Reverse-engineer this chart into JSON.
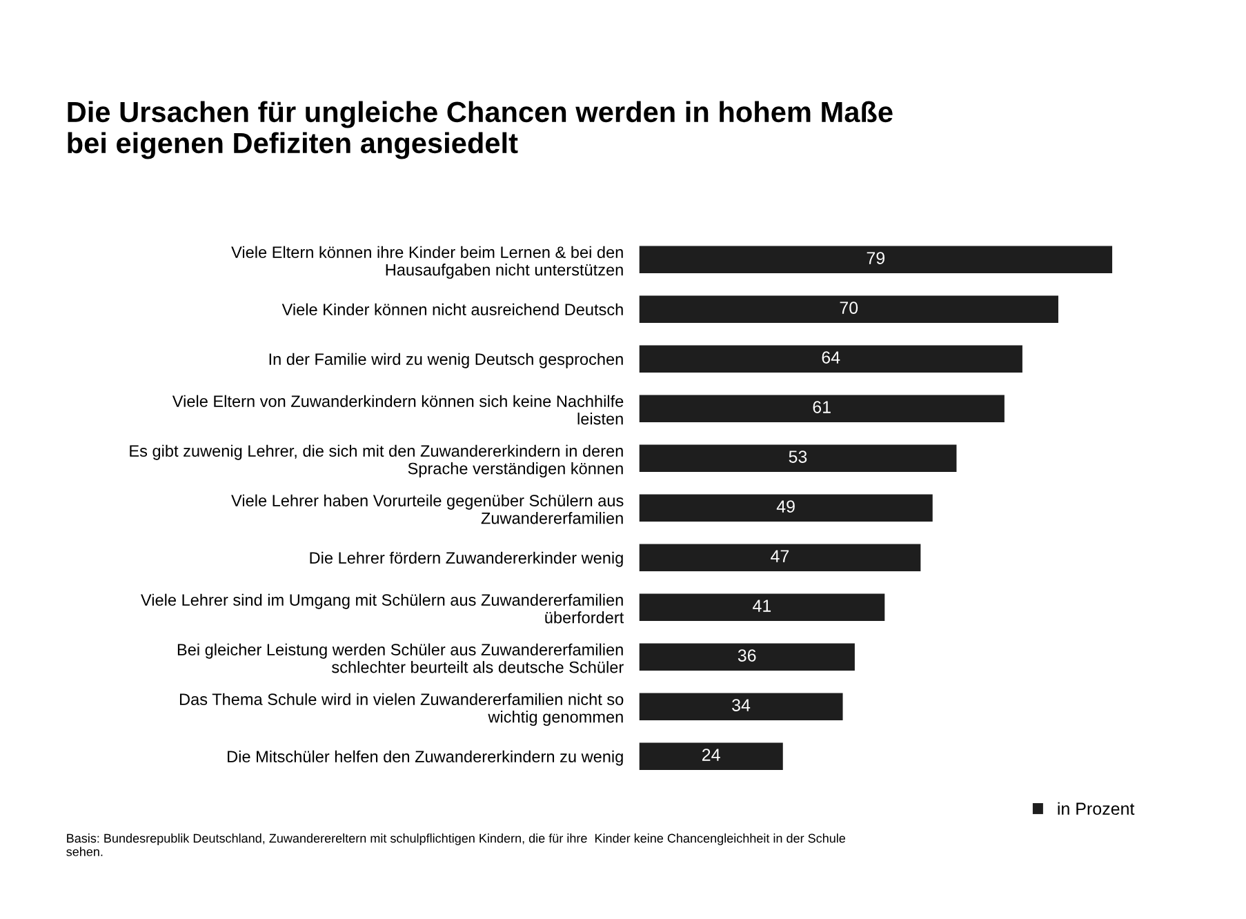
{
  "chart_data": {
    "type": "bar",
    "orientation": "horizontal",
    "title": "Die Ursachen für ungleiche Chancen werden in hohem Maße\nbei eigenen Defiziten angesiedelt",
    "categories": [
      "Viele Eltern können ihre Kinder beim Lernen & bei den\nHausaufgaben nicht unterstützen",
      "Viele Kinder können nicht ausreichend Deutsch",
      "In der Familie wird zu wenig Deutsch gesprochen",
      "Viele Eltern von Zuwanderkindern können sich keine Nachhilfe\nleisten",
      "Es gibt zuwenig Lehrer, die sich mit den Zuwandererkindern in deren\nSprache verständigen können",
      "Viele Lehrer haben Vorurteile gegenüber Schülern aus\nZuwandererfamilien",
      "Die Lehrer fördern Zuwandererkinder wenig",
      "Viele Lehrer sind im Umgang mit Schülern aus Zuwandererfamilien\nüberfordert",
      "Bei gleicher Leistung werden Schüler aus Zuwandererfamilien\nschlechter beurteilt als deutsche Schüler",
      "Das Thema Schule wird in vielen Zuwandererfamilien nicht so\nwichtig genommen",
      "Die Mitschüler helfen den Zuwandererkindern zu wenig"
    ],
    "series": [
      {
        "name": "in Prozent",
        "color": "#1e1e1e",
        "values": [
          79,
          70,
          64,
          61,
          53,
          49,
          47,
          41,
          36,
          34,
          24
        ]
      }
    ],
    "data_labels": true,
    "legend": "bottom right",
    "grid": false,
    "tick_labels": "y",
    "annotations": [
      "Basis: Bundesrepublik Deutschland, Zuwanderereltern mit schulpflichtigen Kindern, die für ihre  Kinder keine Chancengleichheit in der Schule\nsehen."
    ]
  }
}
